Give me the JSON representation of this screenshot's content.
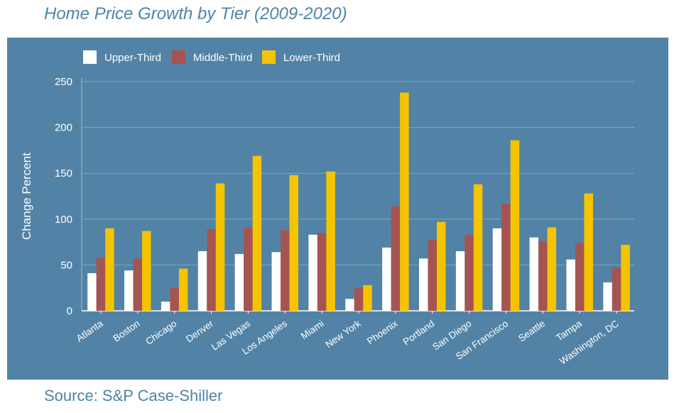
{
  "title": "Home Price Growth by Tier (2009-2020)",
  "source": "Source: S&P Case-Shiller",
  "colors": {
    "panel_bg": "#5283a6",
    "text": "#ffffff",
    "title": "#4e84a6"
  },
  "chart_data": {
    "type": "bar",
    "title": "",
    "xlabel": "",
    "ylabel": "Change Percent",
    "ylim": [
      0,
      250
    ],
    "yticks": [
      0,
      50,
      100,
      150,
      200,
      250
    ],
    "grid": true,
    "legend_position": "top-left",
    "categories": [
      "Atlanta",
      "Boston",
      "Chicago",
      "Denver",
      "Las Vegas",
      "Los Angeles",
      "Miami",
      "New York",
      "Phoenix",
      "Portland",
      "San Diego",
      "San Francisco",
      "Seattle",
      "Tampa",
      "Washington, DC"
    ],
    "series": [
      {
        "name": "Upper-Third",
        "color": "#ffffff",
        "values": [
          41,
          44,
          10,
          65,
          62,
          64,
          83,
          13,
          69,
          57,
          65,
          90,
          80,
          56,
          31
        ]
      },
      {
        "name": "Middle-Third",
        "color": "#a65451",
        "values": [
          58,
          57,
          25,
          89,
          91,
          88,
          85,
          25,
          114,
          77,
          83,
          117,
          76,
          74,
          47
        ]
      },
      {
        "name": "Lower-Third",
        "color": "#f5c400",
        "values": [
          90,
          87,
          46,
          139,
          169,
          148,
          152,
          28,
          238,
          97,
          138,
          186,
          91,
          128,
          72
        ]
      }
    ]
  }
}
